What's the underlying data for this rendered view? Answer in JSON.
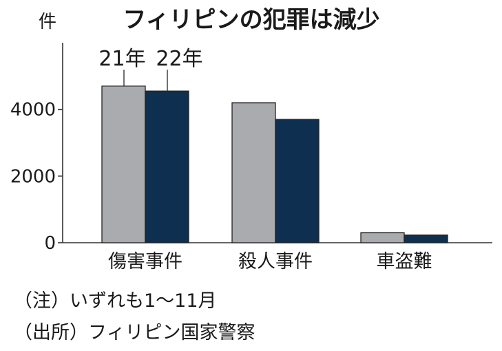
{
  "chart_data": {
    "type": "bar",
    "title": "フィリピンの犯罪は減少",
    "unit_label": "件",
    "categories": [
      "傷害事件",
      "殺人事件",
      "車盗難"
    ],
    "series": [
      {
        "name": "21年",
        "values": [
          4700,
          4200,
          300
        ],
        "color": "#a9abae"
      },
      {
        "name": "22年",
        "values": [
          4550,
          3700,
          230
        ],
        "color": "#0e2f4f"
      }
    ],
    "ylim": [
      0,
      6000
    ],
    "yticks": [
      0,
      2000,
      4000
    ],
    "grid": false,
    "legend": "labels above first category bars"
  },
  "notes": {
    "note": "（注）いずれも1～11月",
    "source": "（出所）フィリピン国家警察"
  }
}
